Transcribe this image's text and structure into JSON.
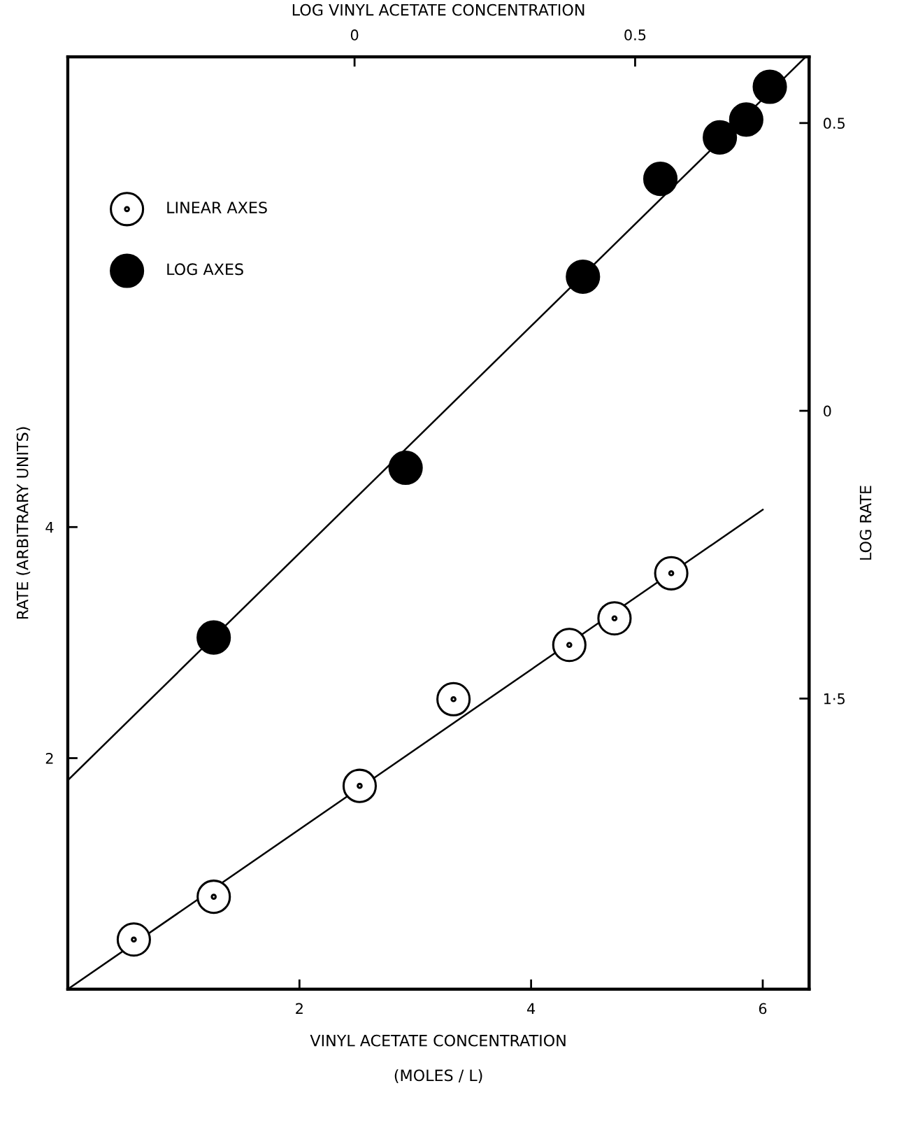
{
  "chart_data": [
    {
      "type": "scatter",
      "xlabel": "VINYL ACETATE CONCENTRATION\n\n(MOLES / L)",
      "ylabel": "RATE (ARBITRARY UNITS)",
      "xlim": [
        0,
        6.4
      ],
      "xticks": [
        2,
        4,
        6
      ],
      "ylim": [
        0,
        8.07
      ],
      "yticks": [
        2,
        4
      ],
      "legend": "top left",
      "grid": false,
      "series": [
        {
          "name": "LINEAR AXES",
          "color": "#ffffff",
          "marker": "circle",
          "x": [
            0.57,
            1.26,
            2.52,
            3.33,
            4.33,
            4.72,
            5.21
          ],
          "values": [
            0.43,
            0.8,
            1.76,
            2.51,
            2.98,
            3.21,
            3.6
          ]
        },
        {
          "type": "line",
          "color": "#000000",
          "marker": "none",
          "x": [
            0,
            6.0
          ],
          "values": [
            0,
            4.15
          ]
        }
      ]
    },
    {
      "type": "scatter",
      "xlabel": "LOG VINYL ACETATE CONCENTRATION",
      "ylabel": "LOG RATE",
      "xlim": [
        -0.511,
        0.81
      ],
      "xticks": [
        0,
        0.5
      ],
      "ylim": [
        -1.005,
        0.615
      ],
      "yticks": [
        0.5,
        0,
        {
          "value": -0.5,
          "label": "1·5"
        }
      ],
      "legend": "top left",
      "grid": false,
      "series": [
        {
          "name": "LOG AXES",
          "color": "#000000",
          "marker": "circle",
          "x": [
            -0.251,
            0.091,
            0.407,
            0.545,
            0.651,
            0.698,
            0.74
          ],
          "values": [
            -0.394,
            -0.099,
            0.233,
            0.403,
            0.475,
            0.506,
            0.563
          ]
        },
        {
          "type": "line",
          "color": "#000000",
          "marker": "none",
          "x": [
            -0.511,
            0.804
          ],
          "values": [
            -0.642,
            0.615
          ]
        }
      ]
    }
  ]
}
